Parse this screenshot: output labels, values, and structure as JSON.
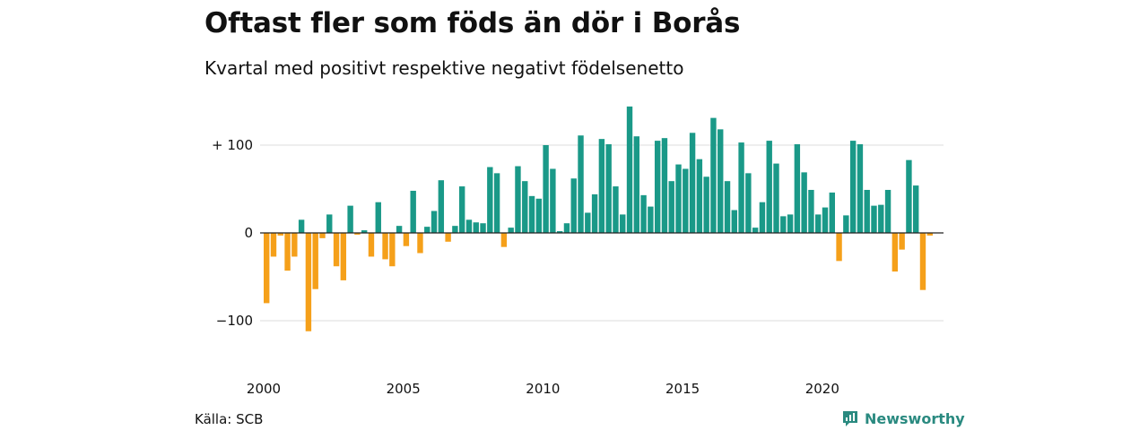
{
  "title": "Oftast fler som föds än dör i Borås",
  "subtitle": "Kvartal med positivt respektive negativt födelsenetto",
  "source": "Källa: SCB",
  "brand": "Newsworthy",
  "colors": {
    "positive": "#1a9988",
    "negative": "#f5a01a",
    "grid": "#dddddd",
    "zero_line": "#222222",
    "brand": "#2a8a80"
  },
  "chart_data": {
    "type": "bar",
    "title": "",
    "xlabel": "",
    "ylabel": "",
    "grid": true,
    "ylim": [
      -125,
      150
    ],
    "xlim": [
      2000,
      2024.5
    ],
    "y_ticks": [
      {
        "value": 100,
        "label": "+ 100"
      },
      {
        "value": 0,
        "label": "0"
      },
      {
        "value": -100,
        "label": "−100"
      }
    ],
    "x_ticks": [
      {
        "value": 2000,
        "label": "2000"
      },
      {
        "value": 2005,
        "label": "2005"
      },
      {
        "value": 2010,
        "label": "2010"
      },
      {
        "value": 2015,
        "label": "2015"
      },
      {
        "value": 2020,
        "label": "2020"
      }
    ],
    "start_quarter": "2000 Q1",
    "values": [
      -80,
      -27,
      -3,
      -43,
      -27,
      15,
      -112,
      -64,
      -6,
      21,
      -38,
      -54,
      31,
      -2,
      3,
      -27,
      35,
      -30,
      -38,
      8,
      -15,
      48,
      -23,
      7,
      25,
      60,
      -10,
      8,
      53,
      15,
      12,
      11,
      75,
      68,
      -16,
      6,
      76,
      59,
      42,
      39,
      100,
      73,
      2,
      11,
      62,
      111,
      23,
      44,
      107,
      101,
      53,
      21,
      144,
      110,
      43,
      30,
      105,
      108,
      59,
      78,
      73,
      114,
      84,
      64,
      131,
      118,
      59,
      26,
      103,
      68,
      6,
      35,
      105,
      79,
      19,
      21,
      101,
      69,
      49,
      21,
      29,
      46,
      -32,
      20,
      105,
      101,
      49,
      31,
      32,
      49,
      -44,
      -19,
      83,
      54,
      -65,
      -3
    ]
  }
}
